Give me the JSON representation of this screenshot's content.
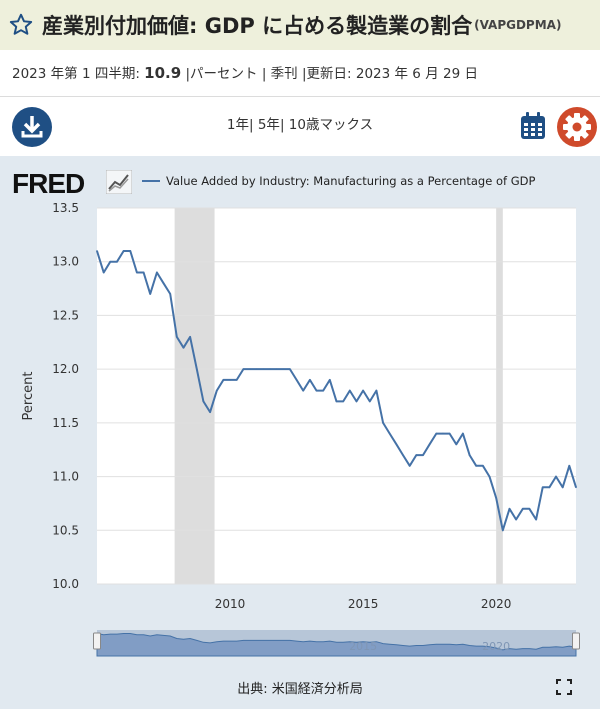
{
  "header": {
    "title": "産業別付加価値: GDP に占める製造業の割合",
    "series_id": "(VAPGDPMA)"
  },
  "info": {
    "period": "2023 年第 1 四半期:",
    "value": "10.9",
    "unit": "|パーセント",
    "frequency": "| 季刊",
    "updated": "|更新日: 2023 年 6 月 29 日"
  },
  "toolbar": {
    "range_links": [
      "1年",
      "5年",
      "10歳",
      "マックス"
    ]
  },
  "source_text": "出典: 米国経済分析局",
  "colors": {
    "line": "#4572a7",
    "recession": "#dddddd",
    "panel": "#e1e9f0",
    "download": "#1f4f84",
    "settings": "#cf4a2b"
  },
  "chart_data": {
    "type": "line",
    "legend": "Value Added by Industry: Manufacturing as a Percentage of GDP",
    "ylabel": "Percent",
    "xlabel": "",
    "ylim": [
      10.0,
      13.5
    ],
    "yticks": [
      10.0,
      10.5,
      11.0,
      11.5,
      12.0,
      12.5,
      13.0,
      13.5
    ],
    "xlim": [
      2005.0,
      2023.0
    ],
    "xticks": [
      2010,
      2015,
      2020
    ],
    "recessions": [
      [
        2007.917,
        2009.417
      ],
      [
        2020.0,
        2020.25
      ]
    ],
    "series": [
      {
        "x": [
          2005.0,
          2005.25,
          2005.5,
          2005.75,
          2006.0,
          2006.25,
          2006.5,
          2006.75,
          2007.0,
          2007.25,
          2007.5,
          2007.75,
          2008.0,
          2008.25,
          2008.5,
          2008.75,
          2009.0,
          2009.25,
          2009.5,
          2009.75,
          2010.0,
          2010.25,
          2010.5,
          2010.75,
          2011.0,
          2011.25,
          2011.5,
          2011.75,
          2012.0,
          2012.25,
          2012.5,
          2012.75,
          2013.0,
          2013.25,
          2013.5,
          2013.75,
          2014.0,
          2014.25,
          2014.5,
          2014.75,
          2015.0,
          2015.25,
          2015.5,
          2015.75,
          2016.0,
          2016.25,
          2016.5,
          2016.75,
          2017.0,
          2017.25,
          2017.5,
          2017.75,
          2018.0,
          2018.25,
          2018.5,
          2018.75,
          2019.0,
          2019.25,
          2019.5,
          2019.75,
          2020.0,
          2020.25,
          2020.5,
          2020.75,
          2021.0,
          2021.25,
          2021.5,
          2021.75,
          2022.0,
          2022.25,
          2022.5,
          2022.75,
          2023.0
        ],
        "y": [
          13.1,
          12.9,
          13.0,
          13.0,
          13.1,
          13.1,
          12.9,
          12.9,
          12.7,
          12.9,
          12.8,
          12.7,
          12.3,
          12.2,
          12.3,
          12.0,
          11.7,
          11.6,
          11.8,
          11.9,
          11.9,
          11.9,
          12.0,
          12.0,
          12.0,
          12.0,
          12.0,
          12.0,
          12.0,
          12.0,
          11.9,
          11.8,
          11.9,
          11.8,
          11.8,
          11.9,
          11.7,
          11.7,
          11.8,
          11.7,
          11.8,
          11.7,
          11.8,
          11.5,
          11.4,
          11.3,
          11.2,
          11.1,
          11.2,
          11.2,
          11.3,
          11.4,
          11.4,
          11.4,
          11.3,
          11.4,
          11.2,
          11.1,
          11.1,
          11.0,
          10.8,
          10.5,
          10.7,
          10.6,
          10.7,
          10.7,
          10.6,
          10.9,
          10.9,
          11.0,
          10.9,
          11.1,
          10.9
        ]
      }
    ]
  }
}
